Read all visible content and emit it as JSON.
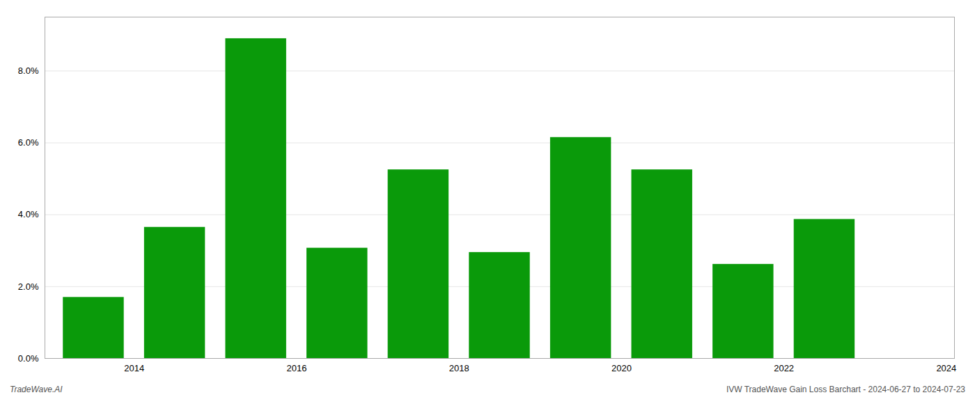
{
  "chart_data": {
    "type": "bar",
    "x": [
      2014,
      2015,
      2016,
      2017,
      2018,
      2019,
      2020,
      2021,
      2022,
      2023
    ],
    "values": [
      0.017,
      0.0365,
      0.089,
      0.0307,
      0.0525,
      0.0295,
      0.0615,
      0.0525,
      0.0262,
      0.0387
    ],
    "color": "#0a9a0a",
    "xlim": [
      2013.4,
      2024.6
    ],
    "xticks": [
      {
        "value": 2014.5,
        "label": "2014"
      },
      {
        "value": 2016.5,
        "label": "2016"
      },
      {
        "value": 2018.5,
        "label": "2018"
      },
      {
        "value": 2020.5,
        "label": "2020"
      },
      {
        "value": 2022.5,
        "label": "2022"
      },
      {
        "value": 2024.5,
        "label": "2024"
      }
    ],
    "ylim": [
      0,
      0.095
    ],
    "yticks": [
      {
        "value": 0.0,
        "label": "0.0%"
      },
      {
        "value": 0.02,
        "label": "2.0%"
      },
      {
        "value": 0.04,
        "label": "4.0%"
      },
      {
        "value": 0.06,
        "label": "6.0%"
      },
      {
        "value": 0.08,
        "label": "8.0%"
      }
    ],
    "grid": true,
    "annotations": [
      "TradeWave.AI",
      "IVW TradeWave Gain Loss Barchart - 2024-06-27 to 2024-07-23"
    ]
  }
}
